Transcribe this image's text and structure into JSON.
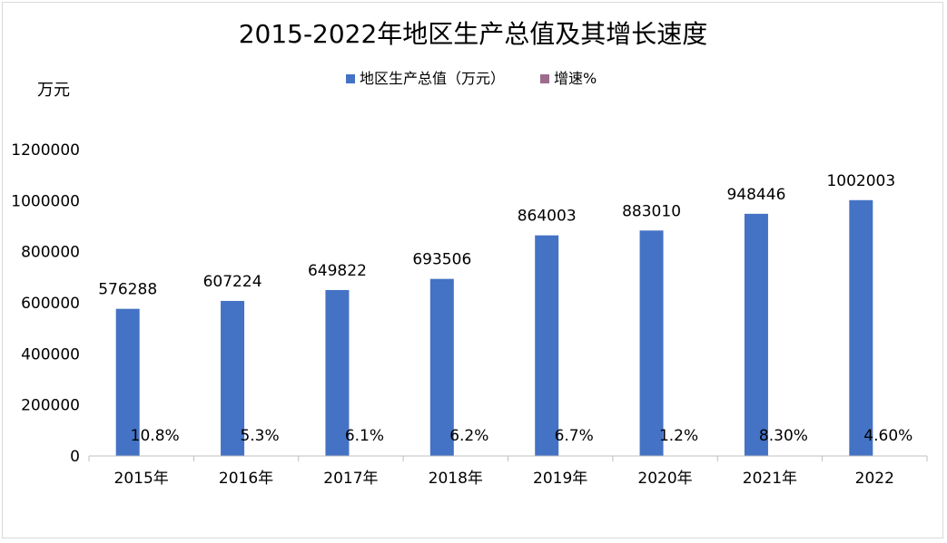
{
  "chart_data": {
    "type": "bar",
    "title": "2015-2022年地区生产总值及其增长速度",
    "ylabel": "万元",
    "xlabel": "",
    "ylim": [
      0,
      1200000
    ],
    "yticks": [
      0,
      200000,
      400000,
      600000,
      800000,
      1000000,
      1200000
    ],
    "ytick_labels": [
      "0",
      "200000",
      "400000",
      "600000",
      "800000",
      "1000000",
      "1200000"
    ],
    "grid": false,
    "legend_position": "top",
    "categories": [
      "2015年",
      "2016年",
      "2017年",
      "2018年",
      "2019年",
      "2020年",
      "2021年",
      "2022"
    ],
    "series": [
      {
        "name": "地区生产总值（万元）",
        "color": "#4472C4",
        "values": [
          576288,
          607224,
          649822,
          693506,
          864003,
          883010,
          948446,
          1002003
        ],
        "labels": [
          "576288",
          "607224",
          "649822",
          "693506",
          "864003",
          "883010",
          "948446",
          "1002003"
        ]
      },
      {
        "name": "增速%",
        "color": "#9E6B8C",
        "values": [
          10.8,
          5.3,
          6.1,
          6.2,
          6.7,
          1.2,
          8.3,
          4.6
        ],
        "labels": [
          "10.8%",
          "5.3%",
          "6.1%",
          "6.2%",
          "6.7%",
          "1.2%",
          "8.30%",
          "4.60%"
        ]
      }
    ]
  }
}
